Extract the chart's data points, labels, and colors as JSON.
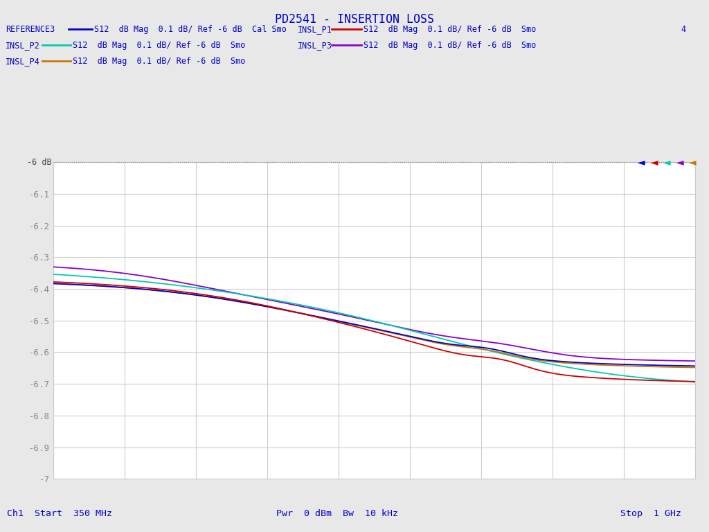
{
  "title": "PD2541 - INSERTION LOSS",
  "xlabel_left": "Ch1  Start  350 MHz",
  "xlabel_center": "Pwr  0 dBm  Bw  10 kHz",
  "xlabel_right": "Stop  1 GHz",
  "ylim": [
    -7.0,
    -6.0
  ],
  "xlim": [
    0,
    1
  ],
  "yticks": [
    -7.0,
    -6.9,
    -6.8,
    -6.7,
    -6.6,
    -6.5,
    -6.4,
    -6.3,
    -6.2,
    -6.1,
    -6.0
  ],
  "ytick_labels": [
    "-7",
    "-6.9",
    "-6.8",
    "-6.7",
    "-6.6",
    "-6.5",
    "-6.4",
    "-6.3",
    "-6.2",
    "-6.1",
    ""
  ],
  "num_xdivs": 9,
  "background_color": "#e8e8e8",
  "plot_bg": "#ffffff",
  "grid_color": "#cccccc",
  "title_color": "#0000cc",
  "label_color": "#0000cc",
  "traces": {
    "REFERENCE3": {
      "color": "#0000cc",
      "desc": "S12  dB Mag  0.1 dB/ Ref -6 dB  Cal Smo"
    },
    "INSL_P1": {
      "color": "#cc0000",
      "desc": "S12  dB Mag  0.1 dB/ Ref -6 dB  Smo"
    },
    "INSL_P2": {
      "color": "#00ccaa",
      "desc": "S12  dB Mag  0.1 dB/ Ref -6 dB  Smo"
    },
    "INSL_P3": {
      "color": "#8800cc",
      "desc": "S12  dB Mag  0.1 dB/ Ref -6 dB  Smo"
    },
    "INSL_P4": {
      "color": "#cc7700",
      "desc": "S12  dB Mag  0.1 dB/ Ref -6 dB  Smo"
    }
  },
  "marker_colors": [
    "#0000cc",
    "#cc0000",
    "#00cc00",
    "#8800cc",
    "#cc7700"
  ],
  "extra_label": "4"
}
